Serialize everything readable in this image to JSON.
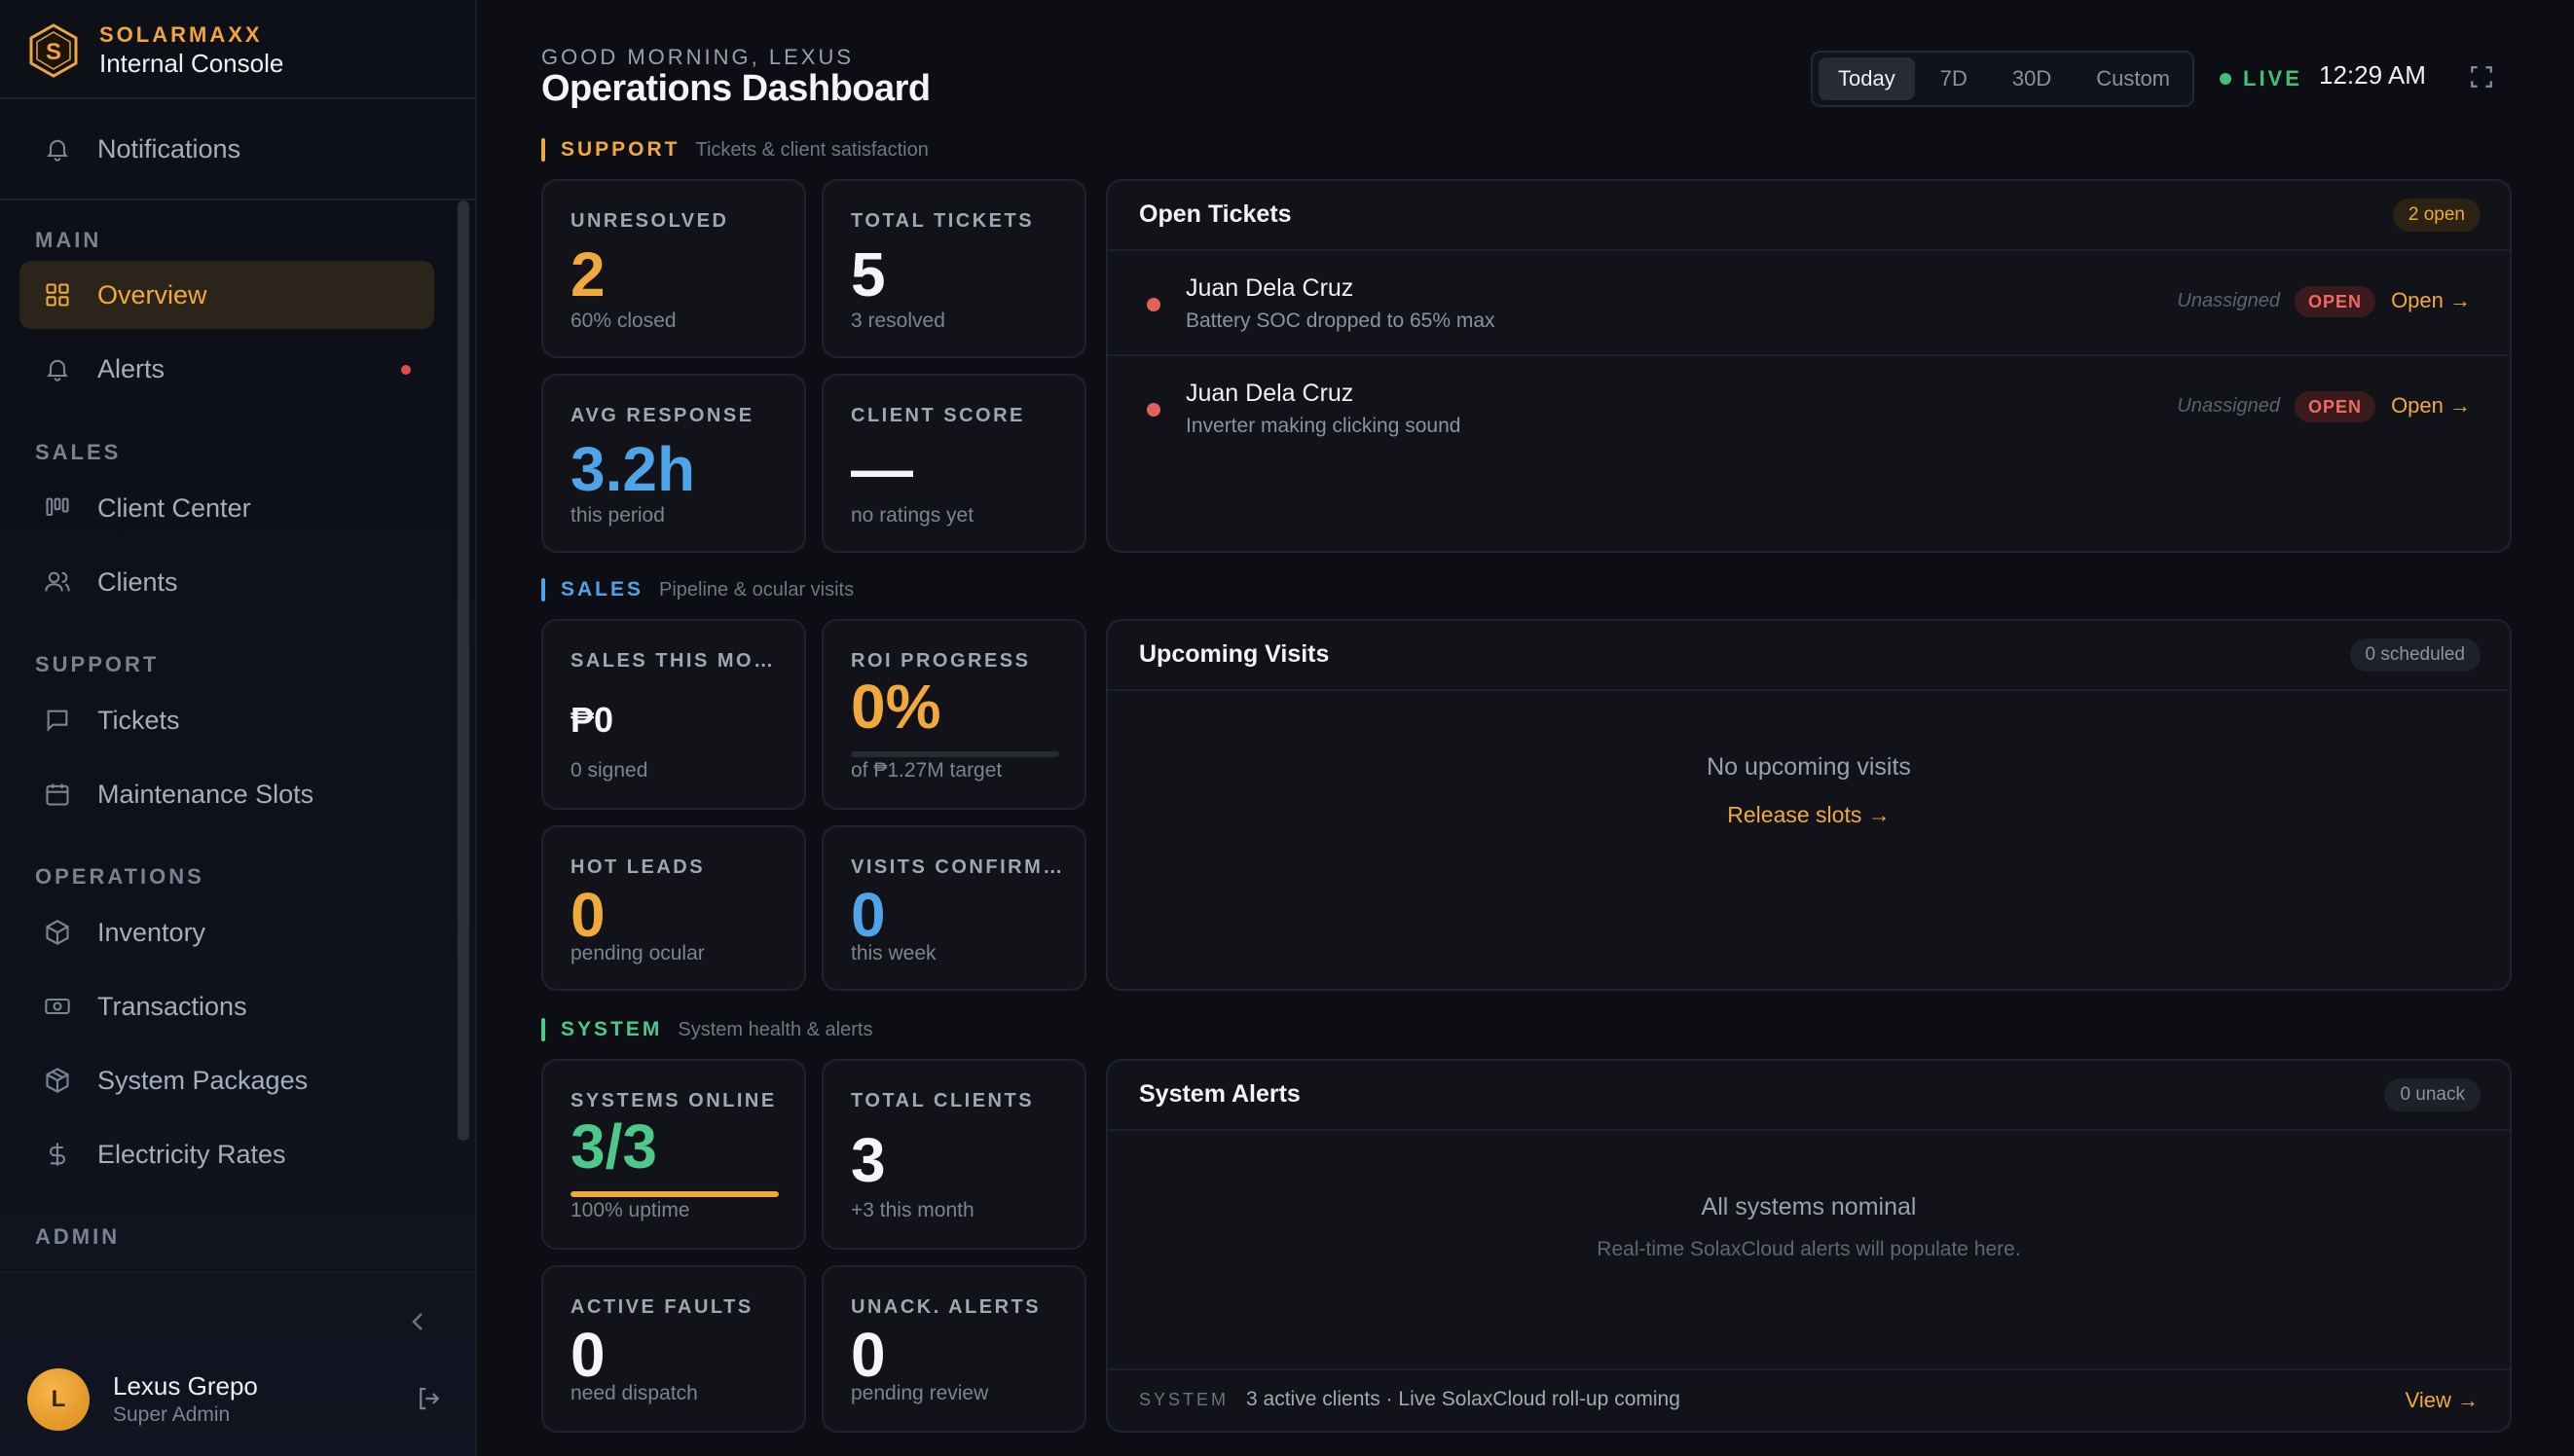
{
  "brand": {
    "name": "SOLARMAXX",
    "subtitle": "Internal Console"
  },
  "sidebar": {
    "notifications": "Notifications",
    "sections": {
      "main": "MAIN",
      "sales": "SALES",
      "support": "SUPPORT",
      "operations": "OPERATIONS",
      "admin": "ADMIN"
    },
    "items": {
      "overview": "Overview",
      "alerts": "Alerts",
      "client_center": "Client Center",
      "clients": "Clients",
      "tickets": "Tickets",
      "maintenance_slots": "Maintenance Slots",
      "inventory": "Inventory",
      "transactions": "Transactions",
      "system_packages": "System Packages",
      "electricity_rates": "Electricity Rates"
    },
    "user": {
      "initial": "L",
      "name": "Lexus Grepo",
      "role": "Super Admin"
    }
  },
  "header": {
    "greeting": "GOOD MORNING, LEXUS",
    "title": "Operations Dashboard",
    "ranges": [
      "Today",
      "7D",
      "30D",
      "Custom"
    ],
    "selected_range": "Today",
    "live_label": "LIVE",
    "time": "12:29 AM"
  },
  "colors": {
    "accent": "#f2a93b",
    "blue": "#4fa3e8",
    "green": "#4cc98a",
    "red": "#e2625a"
  },
  "support": {
    "title": "SUPPORT",
    "desc": "Tickets & client satisfaction",
    "kpis": {
      "unresolved": {
        "label": "UNRESOLVED",
        "value": "2",
        "sub": "60% closed"
      },
      "total_tickets": {
        "label": "TOTAL TICKETS",
        "value": "5",
        "sub": "3 resolved"
      },
      "avg_response": {
        "label": "AVG RESPONSE",
        "value": "3.2h",
        "sub": "this period"
      },
      "client_score": {
        "label": "CLIENT SCORE",
        "value": "—",
        "sub": "no ratings yet"
      }
    },
    "open_tickets": {
      "title": "Open Tickets",
      "badge": "2 open",
      "rows": [
        {
          "name": "Juan Dela Cruz",
          "desc": "Battery SOC dropped to 65% max",
          "assignee": "Unassigned",
          "status": "OPEN",
          "action": "Open →"
        },
        {
          "name": "Juan Dela Cruz",
          "desc": "Inverter making clicking sound",
          "assignee": "Unassigned",
          "status": "OPEN",
          "action": "Open →"
        }
      ]
    }
  },
  "sales": {
    "title": "SALES",
    "desc": "Pipeline & ocular visits",
    "kpis": {
      "sales_month": {
        "label": "SALES THIS MONTH",
        "value": "₱0",
        "sub": "0 signed"
      },
      "roi": {
        "label": "ROI PROGRESS",
        "value": "0%",
        "sub": "of ₱1.27M target",
        "progress": 0
      },
      "hot_leads": {
        "label": "HOT LEADS",
        "value": "0",
        "sub": "pending ocular"
      },
      "visits": {
        "label": "VISITS CONFIRMED",
        "value": "0",
        "sub": "this week"
      }
    },
    "upcoming": {
      "title": "Upcoming Visits",
      "badge": "0 scheduled",
      "empty": "No upcoming visits",
      "link": "Release slots →"
    }
  },
  "system": {
    "title": "SYSTEM",
    "desc": "System health & alerts",
    "kpis": {
      "online": {
        "label": "SYSTEMS ONLINE",
        "value": "3/3",
        "sub": "100% uptime",
        "progress": 1.0
      },
      "clients": {
        "label": "TOTAL CLIENTS",
        "value": "3",
        "sub": "+3 this month"
      },
      "faults": {
        "label": "ACTIVE FAULTS",
        "value": "0",
        "sub": "need dispatch"
      },
      "unack": {
        "label": "UNACK. ALERTS",
        "value": "0",
        "sub": "pending review"
      }
    },
    "alerts": {
      "title": "System Alerts",
      "badge": "0 unack",
      "empty": "All systems nominal",
      "empty_sub": "Real-time SolaxCloud alerts will populate here.",
      "footer_tag": "SYSTEM",
      "footer_text": "3 active clients · Live SolaxCloud roll-up coming",
      "footer_action": "View →"
    }
  }
}
